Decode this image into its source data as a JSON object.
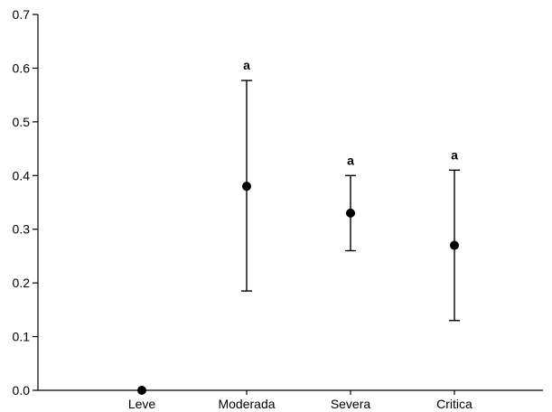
{
  "chart_data": {
    "type": "scatter",
    "title": "",
    "xlabel": "",
    "ylabel": "",
    "categories": [
      "Leve",
      "Moderada",
      "Severa",
      "Critica"
    ],
    "ylim": [
      0,
      0.7
    ],
    "yticks": [
      "0.0",
      "0.1",
      "0.2",
      "0.3",
      "0.4",
      "0.5",
      "0.6",
      "0.7"
    ],
    "grid": false,
    "legend": "none",
    "series": [
      {
        "values": [
          0.0,
          0.38,
          0.33,
          0.27
        ],
        "error_low": [
          null,
          0.185,
          0.26,
          0.13
        ],
        "error_high": [
          null,
          0.577,
          0.4,
          0.41
        ],
        "labels": [
          "",
          "a",
          "a",
          "a"
        ]
      }
    ],
    "colors": {
      "marker": "#000000",
      "axis": "#000000"
    }
  }
}
